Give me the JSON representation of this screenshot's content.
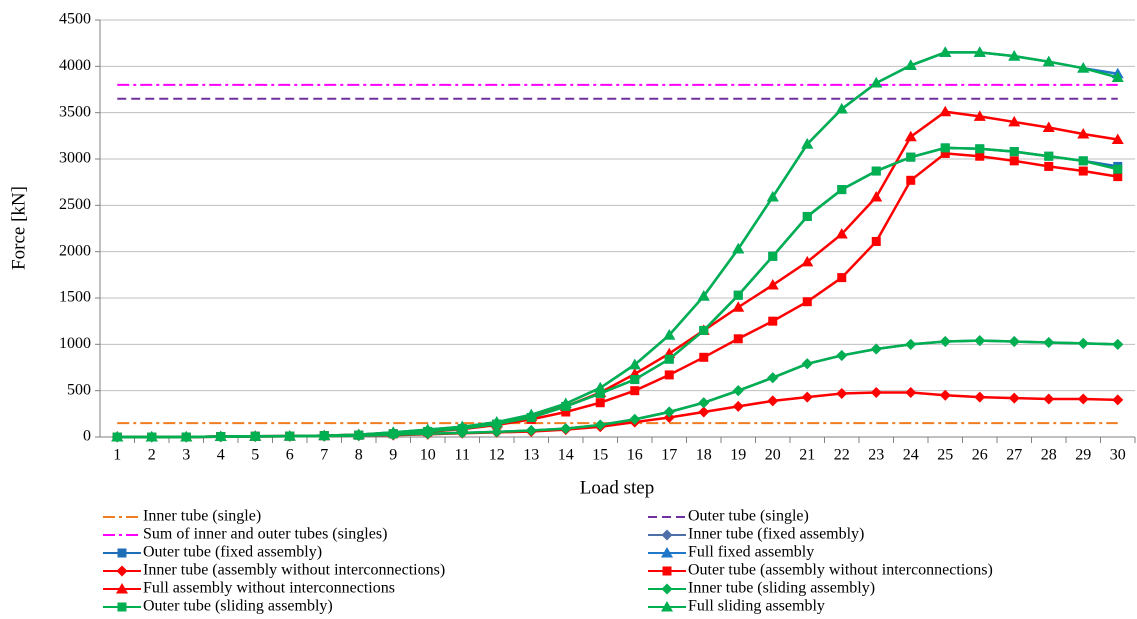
{
  "chart_data": {
    "type": "line",
    "x_label": "Load step",
    "y_label": "Force [kN]",
    "categories": [
      "1",
      "2",
      "3",
      "4",
      "5",
      "6",
      "7",
      "8",
      "9",
      "10",
      "11",
      "12",
      "13",
      "14",
      "15",
      "16",
      "17",
      "18",
      "19",
      "20",
      "21",
      "22",
      "23",
      "24",
      "25",
      "26",
      "27",
      "28",
      "29",
      "30"
    ],
    "ylim": [
      0,
      4500
    ],
    "yticks": [
      0,
      500,
      1000,
      1500,
      2000,
      2500,
      3000,
      3500,
      4000,
      4500
    ],
    "grid": true,
    "series": [
      {
        "name": "Inner tube (single)",
        "color": "#f07d22",
        "dash": "dashdot",
        "marker": null,
        "values": [
          150,
          150,
          150,
          150,
          150,
          150,
          150,
          150,
          150,
          150,
          150,
          150,
          150,
          150,
          150,
          150,
          150,
          150,
          150,
          150,
          150,
          150,
          150,
          150,
          150,
          150,
          150,
          150,
          150,
          150
        ]
      },
      {
        "name": "Outer tube (single)",
        "color": "#7030a0",
        "dash": "dash",
        "marker": null,
        "values": [
          3650,
          3650,
          3650,
          3650,
          3650,
          3650,
          3650,
          3650,
          3650,
          3650,
          3650,
          3650,
          3650,
          3650,
          3650,
          3650,
          3650,
          3650,
          3650,
          3650,
          3650,
          3650,
          3650,
          3650,
          3650,
          3650,
          3650,
          3650,
          3650,
          3650
        ]
      },
      {
        "name": "Sum of inner and outer tubes (singles)",
        "color": "#ff00ff",
        "dash": "dashdot",
        "marker": null,
        "values": [
          3800,
          3800,
          3800,
          3800,
          3800,
          3800,
          3800,
          3800,
          3800,
          3800,
          3800,
          3800,
          3800,
          3800,
          3800,
          3800,
          3800,
          3800,
          3800,
          3800,
          3800,
          3800,
          3800,
          3800,
          3800,
          3800,
          3800,
          3800,
          3800,
          3800
        ]
      },
      {
        "name": "Inner tube (fixed assembly)",
        "color": "#4f6fa8",
        "dash": null,
        "marker": "diamond",
        "values": [
          0,
          0,
          0,
          3,
          5,
          8,
          10,
          15,
          25,
          35,
          45,
          55,
          70,
          90,
          130,
          190,
          270,
          370,
          500,
          640,
          790,
          880,
          950,
          1000,
          1030,
          1040,
          1030,
          1020,
          1010,
          1000
        ]
      },
      {
        "name": "Outer tube (fixed assembly)",
        "color": "#1f6fb8",
        "dash": null,
        "marker": "square",
        "values": [
          0,
          0,
          0,
          5,
          8,
          10,
          15,
          20,
          35,
          60,
          90,
          140,
          210,
          330,
          470,
          620,
          840,
          1150,
          1530,
          1950,
          2380,
          2670,
          2870,
          3020,
          3120,
          3110,
          3080,
          3030,
          2980,
          2920
        ]
      },
      {
        "name": "Full fixed assembly",
        "color": "#1f78c8",
        "dash": null,
        "marker": "triangle",
        "values": [
          0,
          0,
          0,
          5,
          8,
          10,
          15,
          25,
          50,
          80,
          110,
          160,
          240,
          360,
          530,
          780,
          1100,
          1520,
          2030,
          2590,
          3160,
          3540,
          3820,
          4010,
          4150,
          4150,
          4110,
          4050,
          3980,
          3920
        ]
      },
      {
        "name": "Inner tube (assembly without interconnections)",
        "color": "#ff0000",
        "dash": null,
        "marker": "diamond",
        "values": [
          0,
          0,
          0,
          3,
          5,
          8,
          10,
          15,
          20,
          30,
          40,
          50,
          60,
          80,
          110,
          160,
          210,
          270,
          330,
          390,
          430,
          470,
          480,
          480,
          450,
          430,
          420,
          410,
          410,
          400
        ]
      },
      {
        "name": "Outer tube (assembly without interconnections)",
        "color": "#ff0000",
        "dash": null,
        "marker": "square",
        "values": [
          0,
          0,
          0,
          5,
          8,
          10,
          15,
          20,
          35,
          55,
          85,
          130,
          190,
          270,
          370,
          500,
          670,
          860,
          1060,
          1250,
          1460,
          1720,
          2110,
          2770,
          3060,
          3030,
          2980,
          2920,
          2870,
          2810
        ]
      },
      {
        "name": "Full assembly without interconnections",
        "color": "#ff0000",
        "dash": null,
        "marker": "triangle",
        "values": [
          0,
          0,
          0,
          5,
          8,
          10,
          15,
          25,
          45,
          70,
          100,
          150,
          220,
          330,
          480,
          680,
          900,
          1150,
          1400,
          1640,
          1890,
          2190,
          2590,
          3240,
          3510,
          3460,
          3400,
          3340,
          3270,
          3210
        ]
      },
      {
        "name": "Inner tube (sliding assembly)",
        "color": "#00b050",
        "dash": null,
        "marker": "diamond",
        "values": [
          0,
          0,
          0,
          3,
          5,
          8,
          10,
          15,
          25,
          35,
          45,
          55,
          70,
          90,
          130,
          190,
          270,
          370,
          500,
          640,
          790,
          880,
          950,
          1000,
          1030,
          1040,
          1030,
          1020,
          1010,
          1000
        ]
      },
      {
        "name": "Outer tube (sliding assembly)",
        "color": "#00b050",
        "dash": null,
        "marker": "square",
        "values": [
          0,
          0,
          0,
          5,
          8,
          10,
          15,
          20,
          35,
          60,
          90,
          140,
          210,
          330,
          470,
          620,
          840,
          1150,
          1530,
          1950,
          2380,
          2670,
          2870,
          3020,
          3120,
          3110,
          3080,
          3030,
          2980,
          2890
        ]
      },
      {
        "name": "Full sliding assembly",
        "color": "#00b050",
        "dash": null,
        "marker": "triangle",
        "values": [
          0,
          0,
          0,
          5,
          8,
          10,
          15,
          25,
          50,
          80,
          110,
          160,
          240,
          360,
          530,
          780,
          1100,
          1520,
          2030,
          2590,
          3160,
          3540,
          3820,
          4010,
          4150,
          4150,
          4110,
          4050,
          3980,
          3880
        ]
      }
    ]
  }
}
